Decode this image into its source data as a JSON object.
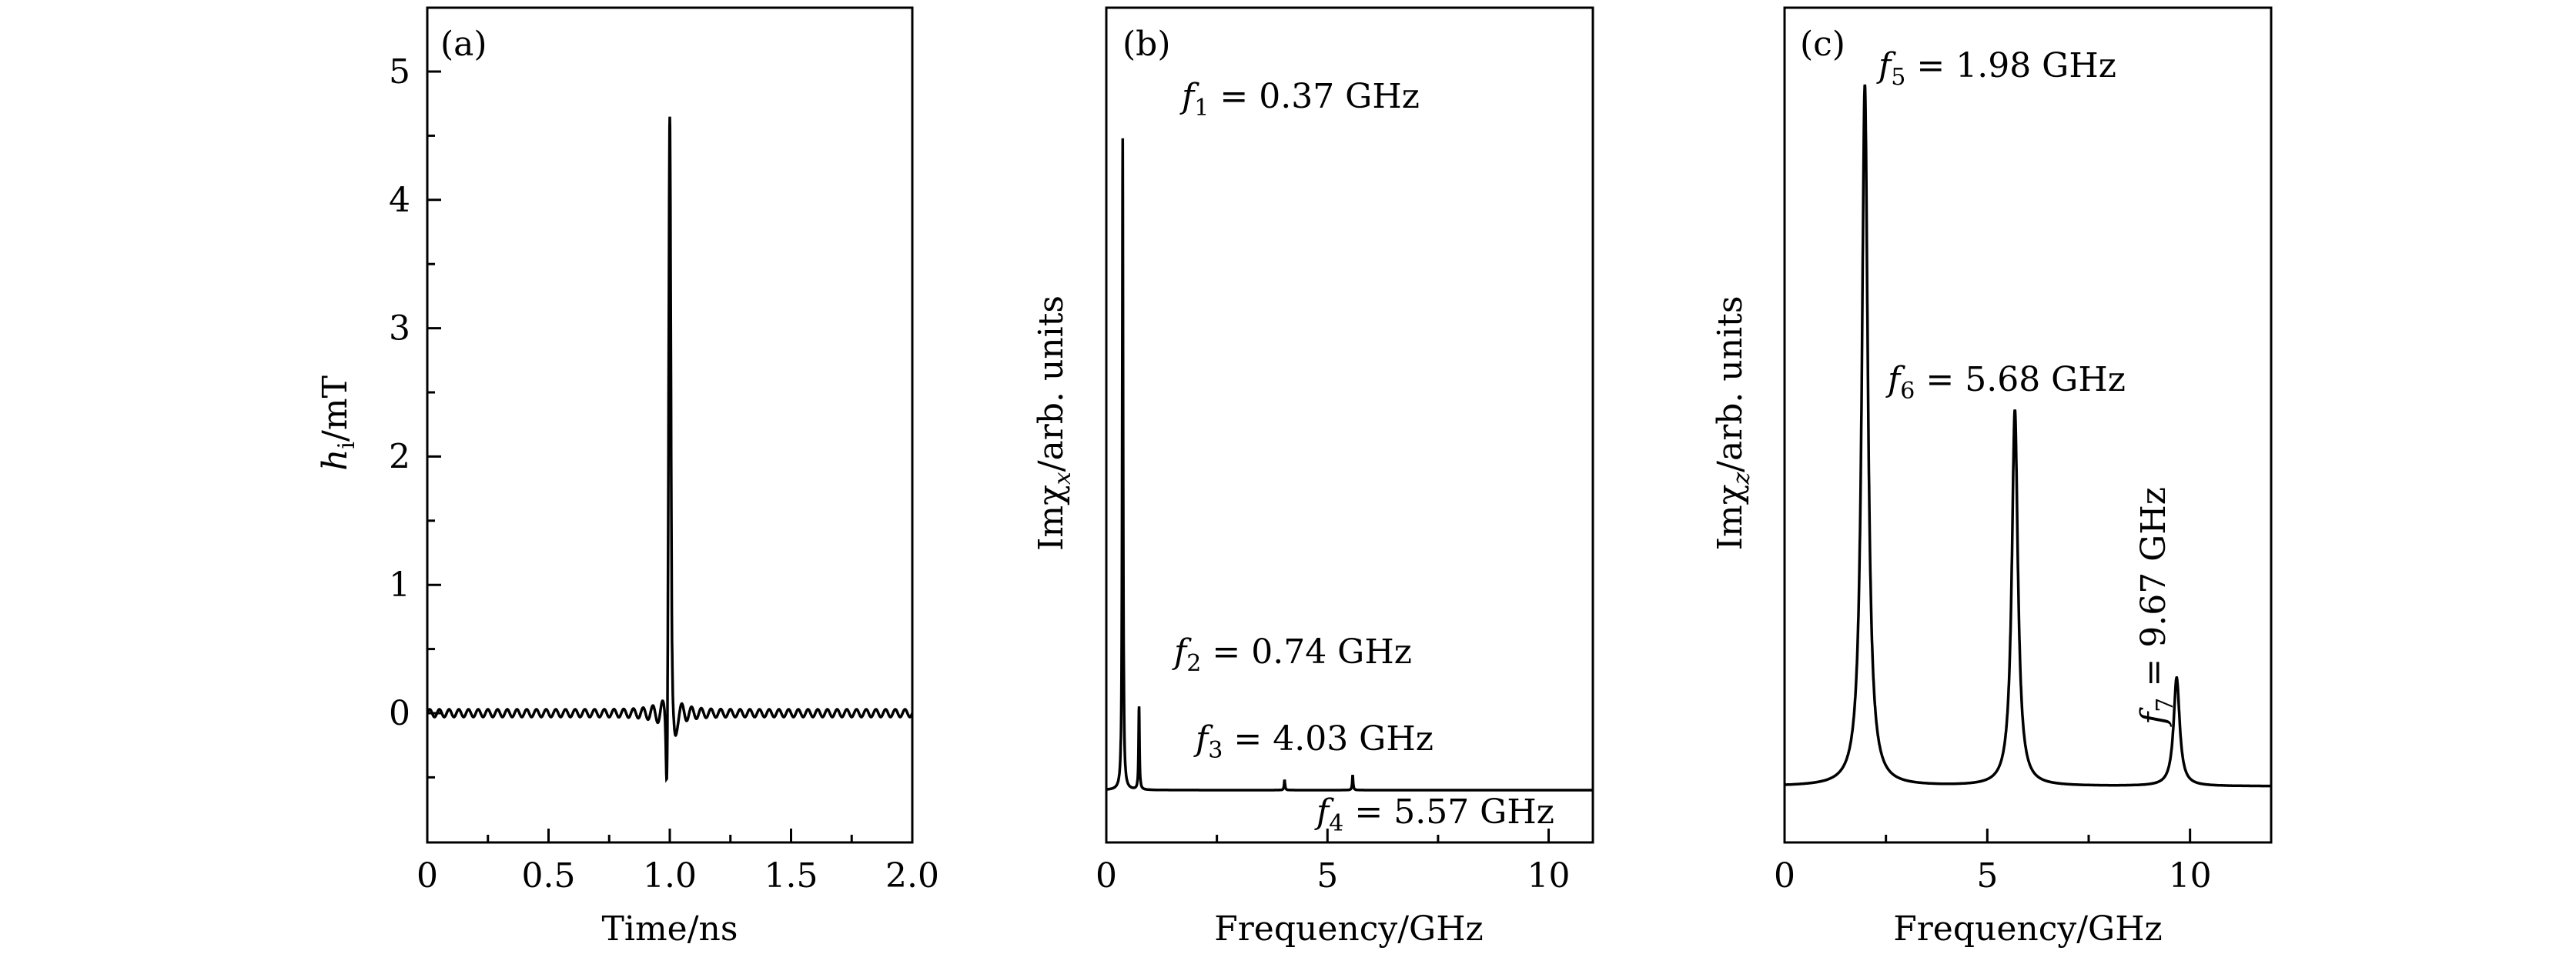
{
  "chart_data": [
    {
      "type": "line",
      "panel_label": "(a)",
      "xlabel": "Time/ns",
      "ylabel": {
        "main": "h",
        "sub": "i",
        "unit": "/mT"
      },
      "xlim": [
        0,
        2.0
      ],
      "ylim": [
        -1,
        5.5
      ],
      "xticks": [
        0,
        0.5,
        1.0,
        1.5,
        2.0
      ],
      "xtick_labels": [
        "0",
        "0.5",
        "1.0",
        "1.5",
        "2.0"
      ],
      "yticks": [
        0,
        1,
        2,
        3,
        4,
        5
      ],
      "ytick_labels": [
        "0",
        "1",
        "2",
        "3",
        "4",
        "5"
      ],
      "series": [
        {
          "shape": "sinc-pulse",
          "center": 1.0,
          "peak": 4.65,
          "min": -0.5,
          "ripple_amplitude": 0.03
        }
      ],
      "grid": false,
      "legend": "none"
    },
    {
      "type": "line",
      "panel_label": "(b)",
      "xlabel": "Frequency/GHz",
      "ylabel": {
        "main": "Imχ",
        "sub": "x",
        "unit": "/arb. units"
      },
      "xlim": [
        0,
        11
      ],
      "xticks": [
        0,
        5,
        10
      ],
      "xtick_labels": [
        "0",
        "5",
        "10"
      ],
      "y_ticks_shown": false,
      "peaks": [
        {
          "freq": 0.37,
          "height": 0.94
        },
        {
          "freq": 0.74,
          "height": 0.12
        },
        {
          "freq": 4.03,
          "height": 0.015
        },
        {
          "freq": 5.57,
          "height": 0.022
        }
      ],
      "annotations": [
        {
          "name": "f",
          "sub": "1",
          "text": " = 0.37 GHz"
        },
        {
          "name": "f",
          "sub": "2",
          "text": " = 0.74 GHz"
        },
        {
          "name": "f",
          "sub": "3",
          "text": " = 4.03 GHz"
        },
        {
          "name": "f",
          "sub": "4",
          "text": " = 5.57 GHz"
        }
      ],
      "grid": false,
      "legend": "none"
    },
    {
      "type": "line",
      "panel_label": "(c)",
      "xlabel": "Frequency/GHz",
      "ylabel": {
        "main": "Imχ",
        "sub": "z",
        "unit": "/arb. units"
      },
      "xlim": [
        0,
        12
      ],
      "xticks": [
        0,
        5,
        10
      ],
      "xtick_labels": [
        "0",
        "5",
        "10"
      ],
      "y_ticks_shown": false,
      "peaks": [
        {
          "freq": 1.98,
          "height": 0.97
        },
        {
          "freq": 5.68,
          "height": 0.52
        },
        {
          "freq": 9.67,
          "height": 0.15
        }
      ],
      "annotations": [
        {
          "name": "f",
          "sub": "5",
          "text": " = 1.98 GHz"
        },
        {
          "name": "f",
          "sub": "6",
          "text": " = 5.68 GHz"
        },
        {
          "name": "f",
          "sub": "7",
          "text": " = 9.67 GHz"
        }
      ],
      "grid": false,
      "legend": "none"
    }
  ]
}
